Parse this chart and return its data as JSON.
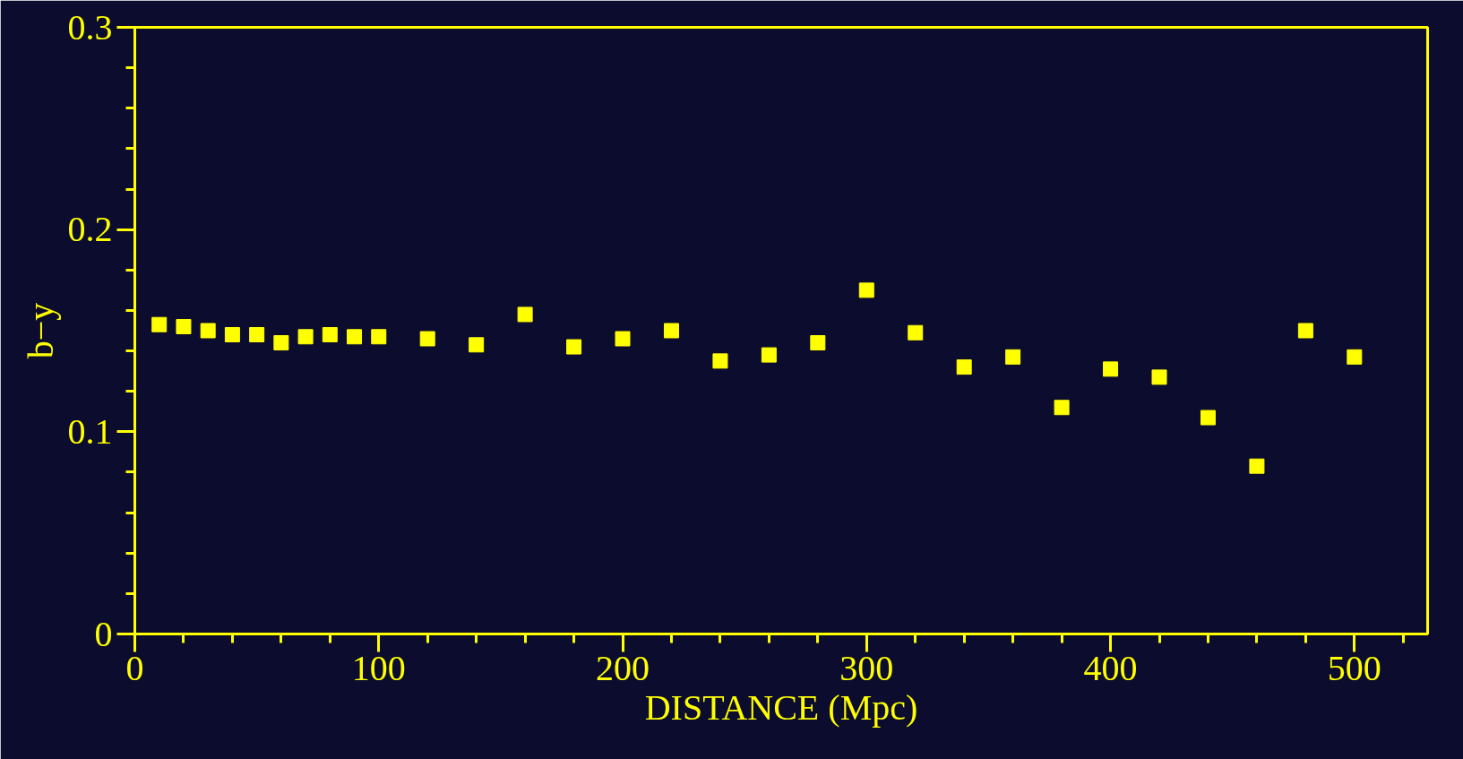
{
  "chart_data": {
    "type": "scatter",
    "xlabel": "DISTANCE (Mpc)",
    "ylabel": "b−y",
    "marker": "square",
    "grid": false,
    "x": [
      10,
      20,
      30,
      40,
      50,
      60,
      70,
      80,
      90,
      100,
      120,
      140,
      160,
      180,
      200,
      220,
      240,
      260,
      280,
      300,
      320,
      340,
      360,
      380,
      400,
      420,
      440,
      460,
      480,
      500
    ],
    "series": [
      {
        "color": "#ffff00",
        "values": [
          0.153,
          0.152,
          0.15,
          0.148,
          0.148,
          0.144,
          0.147,
          0.148,
          0.147,
          0.147,
          0.146,
          0.143,
          0.158,
          0.142,
          0.146,
          0.15,
          0.135,
          0.138,
          0.144,
          0.17,
          0.149,
          0.132,
          0.137,
          0.112,
          0.131,
          0.127,
          0.107,
          0.083,
          0.15,
          0.137
        ]
      }
    ],
    "xlim": [
      0,
      530
    ],
    "xticks": [
      0,
      100,
      200,
      300,
      400,
      500
    ],
    "ylim": [
      0,
      0.3
    ],
    "yticks": [
      0,
      0.1,
      0.2,
      0.3
    ]
  }
}
